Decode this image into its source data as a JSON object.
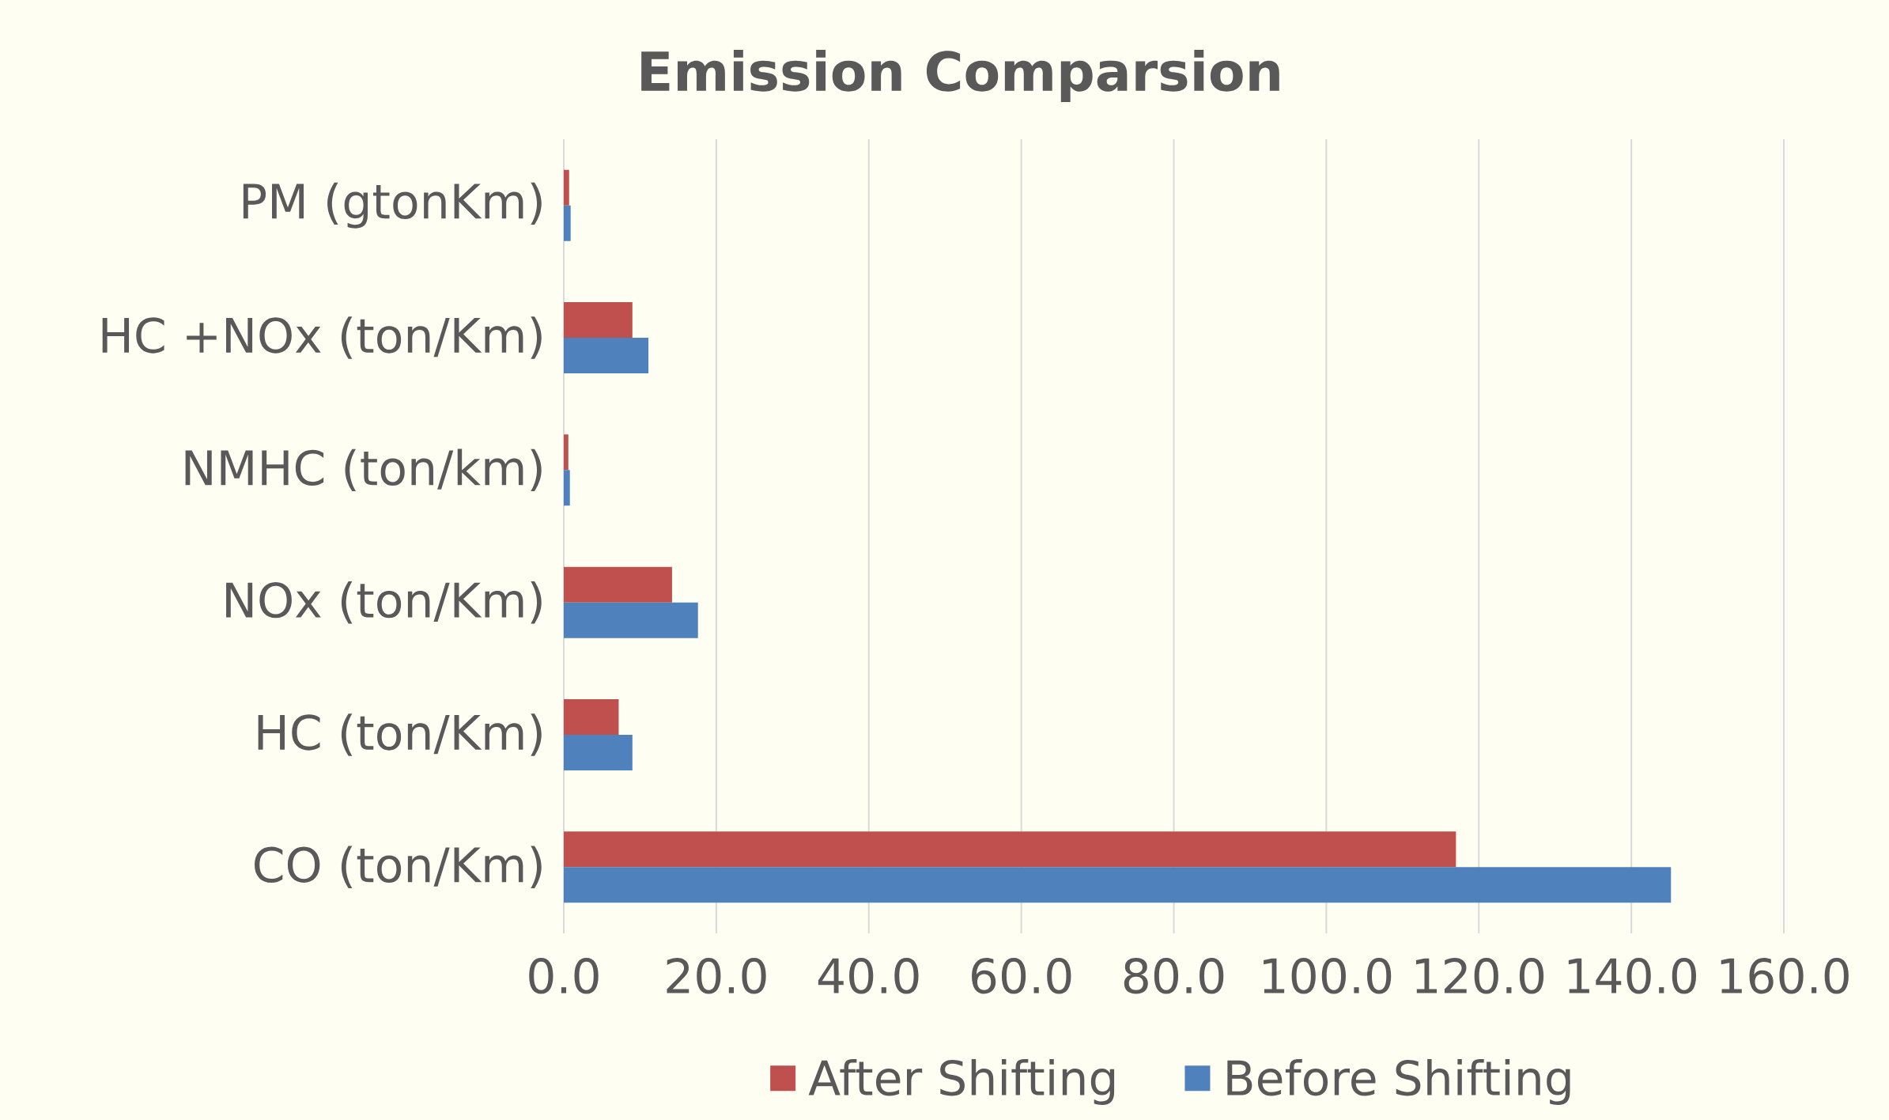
{
  "chart_data": {
    "type": "bar",
    "orientation": "horizontal",
    "title": "Emission Comparsion",
    "categories": [
      "PM (gtonKm)",
      "HC +NOx (ton/Km)",
      "NMHC (ton/km)",
      "NOx   (ton/Km)",
      "HC (ton/Km)",
      "CO (ton/Km)"
    ],
    "series": [
      {
        "name": "After Shifting",
        "color": "#c0504d",
        "values": [
          0.7,
          9.0,
          0.6,
          14.2,
          7.2,
          117.0
        ]
      },
      {
        "name": "Before Shifting",
        "color": "#4f81bd",
        "values": [
          0.9,
          11.1,
          0.8,
          17.6,
          9.0,
          145.2
        ]
      }
    ],
    "xlim": [
      0,
      160
    ],
    "xticks": [
      {
        "value": 0,
        "label": "0.0"
      },
      {
        "value": 20,
        "label": "20.0"
      },
      {
        "value": 40,
        "label": "40.0"
      },
      {
        "value": 60,
        "label": "60.0"
      },
      {
        "value": 80,
        "label": "80.0"
      },
      {
        "value": 100,
        "label": "100.0"
      },
      {
        "value": 120,
        "label": "120.0"
      },
      {
        "value": 140,
        "label": "140.0"
      },
      {
        "value": 160,
        "label": "160.0"
      }
    ],
    "grid": "x",
    "legend": "bottom"
  }
}
